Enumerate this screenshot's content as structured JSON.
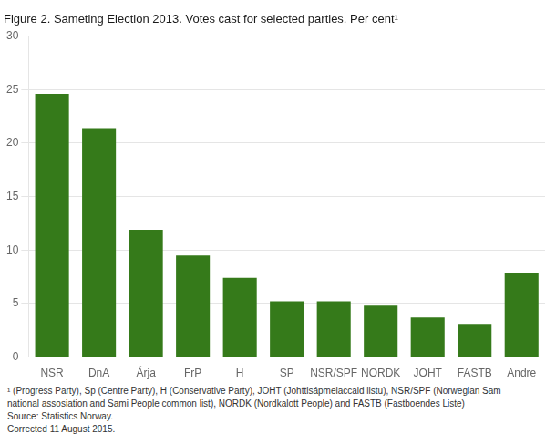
{
  "chart_data": {
    "type": "bar",
    "title": "Figure 2. Sameting Election 2013. Votes cast for selected parties. Per cent¹",
    "categories": [
      "NSR",
      "DnA",
      "Árja",
      "FrP",
      "H",
      "SP",
      "NSR/SPF",
      "NORDK",
      "JOHT",
      "FASTB",
      "Andre"
    ],
    "values": [
      24.6,
      21.4,
      11.9,
      9.5,
      7.4,
      5.2,
      5.2,
      4.8,
      3.7,
      3.1,
      7.9
    ],
    "color": "#357a1a",
    "ylim": [
      0,
      30
    ],
    "yticks": [
      0,
      5,
      10,
      15,
      20,
      25,
      30
    ],
    "grid": true,
    "annotations": [
      "¹ (Progress Party), Sp (Centre Party), H (Conservative Party), JOHT (Johttisápmelaccaid listu), NSR/SPF (Norwegian Sam",
      "national assosiation and Sami People common list), NORDK (Nordkalott People) and FASTB (Fastboendes Liste)",
      "Source: Statistics Norway.",
      "Corrected 11 August 2015."
    ]
  }
}
